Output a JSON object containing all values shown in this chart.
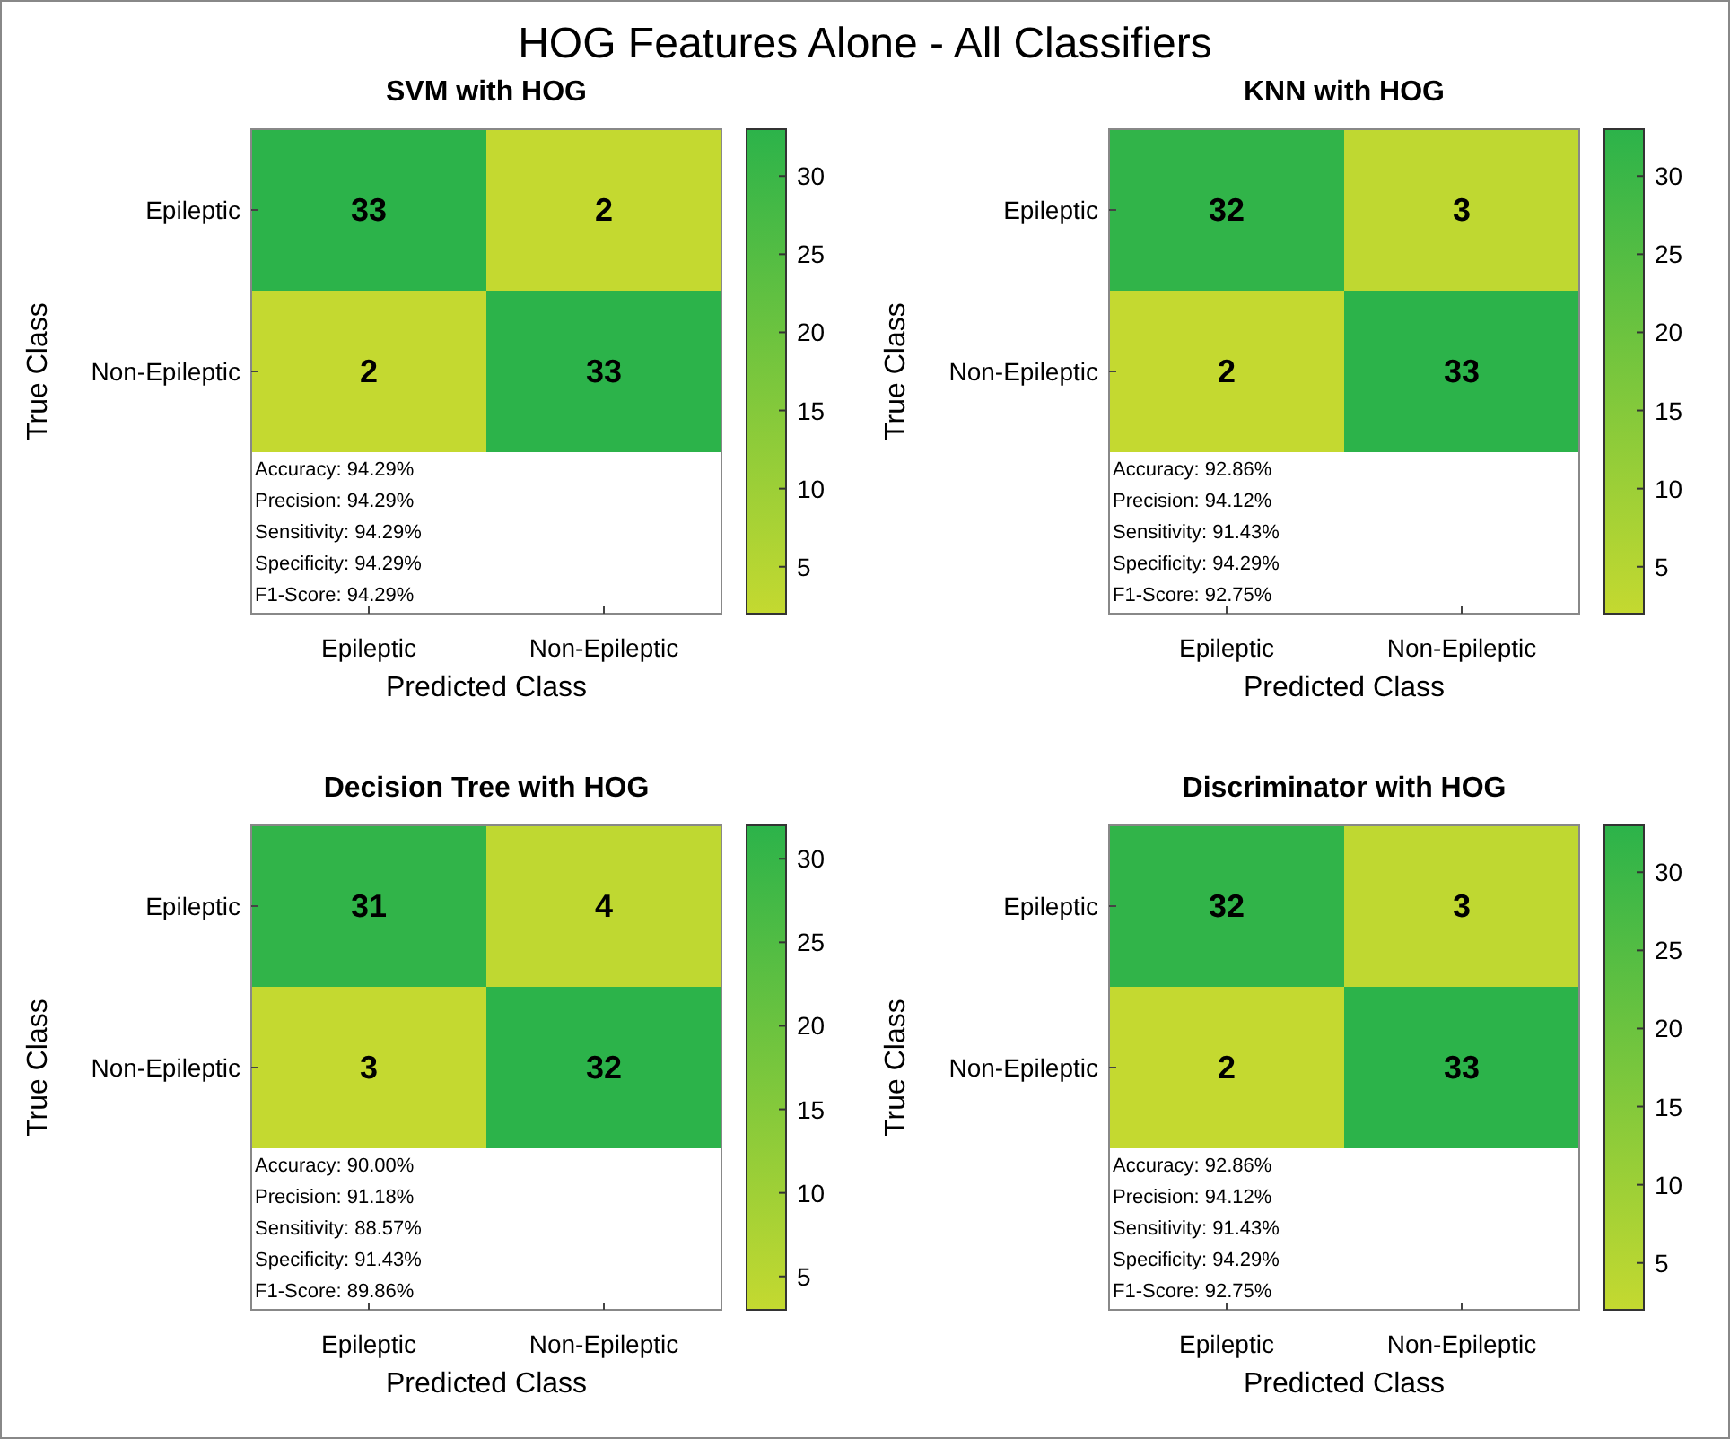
{
  "chart_data": [
    {
      "type": "other",
      "title": "HOG Features Alone - All Classifiers"
    },
    {
      "type": "heatmap",
      "title": "SVM with HOG",
      "xlabel": "Predicted Class",
      "ylabel": "True Class",
      "categories": [
        "Epileptic",
        "Non-Epileptic"
      ],
      "y_categories": [
        "Epileptic",
        "Non-Epileptic"
      ],
      "cells": [
        [
          33,
          2
        ],
        [
          2,
          33
        ]
      ],
      "data_labels": true,
      "clim": [
        2,
        33
      ],
      "cticks": [
        5,
        10,
        15,
        20,
        25,
        30
      ],
      "annotations": [
        "Accuracy: 94.29%",
        "Precision: 94.29%",
        "Sensitivity: 94.29%",
        "Specificity: 94.29%",
        "F1-Score: 94.29%"
      ]
    },
    {
      "type": "heatmap",
      "title": "KNN with HOG",
      "xlabel": "Predicted Class",
      "ylabel": "True Class",
      "categories": [
        "Epileptic",
        "Non-Epileptic"
      ],
      "y_categories": [
        "Epileptic",
        "Non-Epileptic"
      ],
      "cells": [
        [
          32,
          3
        ],
        [
          2,
          33
        ]
      ],
      "data_labels": true,
      "clim": [
        2,
        33
      ],
      "cticks": [
        5,
        10,
        15,
        20,
        25,
        30
      ],
      "annotations": [
        "Accuracy: 92.86%",
        "Precision: 94.12%",
        "Sensitivity: 91.43%",
        "Specificity: 94.29%",
        "F1-Score: 92.75%"
      ]
    },
    {
      "type": "heatmap",
      "title": "Decision Tree with HOG",
      "xlabel": "Predicted Class",
      "ylabel": "True Class",
      "categories": [
        "Epileptic",
        "Non-Epileptic"
      ],
      "y_categories": [
        "Epileptic",
        "Non-Epileptic"
      ],
      "cells": [
        [
          31,
          4
        ],
        [
          3,
          32
        ]
      ],
      "data_labels": true,
      "clim": [
        3,
        32
      ],
      "cticks": [
        5,
        10,
        15,
        20,
        25,
        30
      ],
      "annotations": [
        "Accuracy: 90.00%",
        "Precision: 91.18%",
        "Sensitivity: 88.57%",
        "Specificity: 91.43%",
        "F1-Score: 89.86%"
      ]
    },
    {
      "type": "heatmap",
      "title": "Discriminator with HOG",
      "xlabel": "Predicted Class",
      "ylabel": "True Class",
      "categories": [
        "Epileptic",
        "Non-Epileptic"
      ],
      "y_categories": [
        "Epileptic",
        "Non-Epileptic"
      ],
      "cells": [
        [
          32,
          3
        ],
        [
          2,
          33
        ]
      ],
      "data_labels": true,
      "clim": [
        2,
        33
      ],
      "cticks": [
        5,
        10,
        15,
        20,
        25,
        30
      ],
      "annotations": [
        "Accuracy: 92.86%",
        "Precision: 94.12%",
        "Sensitivity: 91.43%",
        "Specificity: 94.29%",
        "F1-Score: 92.75%"
      ]
    }
  ]
}
